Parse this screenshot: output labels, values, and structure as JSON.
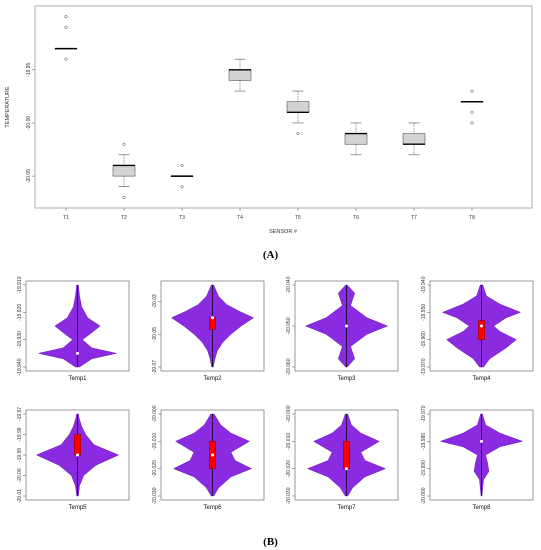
{
  "captions": {
    "a": "(A)",
    "b": "(B)"
  },
  "colors": {
    "box_fill": "#d3d3d3",
    "violin_fill": "#8a2be2",
    "violin_stroke": "#6a1bb5",
    "iqr_box": "#ff0000",
    "median_dot": "#ffffff"
  },
  "chart_data": [
    {
      "type": "box",
      "xlabel": "SENSOR #",
      "ylabel": "TEMPERATURE",
      "ylim": [
        -20.08,
        -19.89
      ],
      "yticks": [
        "-19.95",
        "-20.00",
        "-20.05"
      ],
      "yticks_values": [
        -19.95,
        -20.0,
        -20.05
      ],
      "categories": [
        "T1",
        "T2",
        "T3",
        "T4",
        "T5",
        "T6",
        "T7",
        "T8"
      ],
      "boxes": [
        {
          "q1": -19.93,
          "median": -19.93,
          "q3": -19.93,
          "whislo": -19.93,
          "whishi": -19.93,
          "outliers": [
            -19.9,
            -19.91,
            -19.94
          ]
        },
        {
          "q1": -20.05,
          "median": -20.04,
          "q3": -20.04,
          "whislo": -20.06,
          "whishi": -20.03,
          "outliers": [
            -20.02,
            -20.07
          ]
        },
        {
          "q1": -20.05,
          "median": -20.05,
          "q3": -20.05,
          "whislo": -20.05,
          "whishi": -20.05,
          "outliers": [
            -20.04,
            -20.06
          ]
        },
        {
          "q1": -19.96,
          "median": -19.95,
          "q3": -19.95,
          "whislo": -19.97,
          "whishi": -19.94,
          "outliers": []
        },
        {
          "q1": -19.99,
          "median": -19.99,
          "q3": -19.98,
          "whislo": -20.0,
          "whishi": -19.97,
          "outliers": [
            -20.01
          ]
        },
        {
          "q1": -20.02,
          "median": -20.01,
          "q3": -20.01,
          "whislo": -20.03,
          "whishi": -20.0,
          "outliers": []
        },
        {
          "q1": -20.02,
          "median": -20.02,
          "q3": -20.01,
          "whislo": -20.03,
          "whishi": -20.0,
          "outliers": []
        },
        {
          "q1": -19.98,
          "median": -19.98,
          "q3": -19.98,
          "whislo": -19.98,
          "whishi": -19.98,
          "outliers": [
            -19.97,
            -19.99,
            -20.0
          ]
        }
      ]
    },
    {
      "type": "violin",
      "panels": [
        {
          "label": "Temp1",
          "ylim": [
            -19.94,
            -19.91
          ],
          "yticks": [
            "-19.910",
            "-19.920",
            "-19.930",
            "-19.940"
          ],
          "yticks_values": [
            -19.91,
            -19.92,
            -19.93,
            -19.94
          ],
          "median": -19.935,
          "q1": -19.935,
          "q3": -19.935,
          "density": [
            [
              -19.94,
              0.05
            ],
            [
              -19.937,
              0.35
            ],
            [
              -19.935,
              0.95
            ],
            [
              -19.933,
              0.35
            ],
            [
              -19.93,
              0.12
            ],
            [
              -19.928,
              0.3
            ],
            [
              -19.925,
              0.55
            ],
            [
              -19.922,
              0.25
            ],
            [
              -19.918,
              0.1
            ],
            [
              -19.914,
              0.05
            ],
            [
              -19.91,
              0.02
            ]
          ]
        },
        {
          "label": "Temp2",
          "ylim": [
            -20.07,
            -20.02
          ],
          "yticks": [
            "-20.03",
            "-20.05",
            "-20.07"
          ],
          "yticks_values": [
            -20.03,
            -20.05,
            -20.07
          ],
          "median": -20.04,
          "q1": -20.047,
          "q3": -20.04,
          "density": [
            [
              -20.07,
              0.02
            ],
            [
              -20.065,
              0.06
            ],
            [
              -20.06,
              0.12
            ],
            [
              -20.055,
              0.25
            ],
            [
              -20.05,
              0.45
            ],
            [
              -20.045,
              0.7
            ],
            [
              -20.04,
              1.0
            ],
            [
              -20.036,
              0.65
            ],
            [
              -20.032,
              0.35
            ],
            [
              -20.027,
              0.15
            ],
            [
              -20.023,
              0.08
            ],
            [
              -20.02,
              0.03
            ]
          ]
        },
        {
          "label": "Temp3",
          "ylim": [
            -20.06,
            -20.04
          ],
          "yticks": [
            "-20.040",
            "-20.050",
            "-20.060"
          ],
          "yticks_values": [
            -20.04,
            -20.05,
            -20.06
          ],
          "median": -20.05,
          "q1": -20.05,
          "q3": -20.05,
          "density": [
            [
              -20.06,
              0.02
            ],
            [
              -20.058,
              0.2
            ],
            [
              -20.055,
              0.1
            ],
            [
              -20.052,
              0.5
            ],
            [
              -20.05,
              1.0
            ],
            [
              -20.048,
              0.5
            ],
            [
              -20.045,
              0.1
            ],
            [
              -20.042,
              0.2
            ],
            [
              -20.04,
              0.02
            ]
          ]
        },
        {
          "label": "Temp4",
          "ylim": [
            -19.97,
            -19.94
          ],
          "yticks": [
            "-19.940",
            "-19.950",
            "-19.960",
            "-19.970"
          ],
          "yticks_values": [
            -19.94,
            -19.95,
            -19.96,
            -19.97
          ],
          "median": -19.955,
          "q1": -19.96,
          "q3": -19.953,
          "density": [
            [
              -19.97,
              0.05
            ],
            [
              -19.967,
              0.2
            ],
            [
              -19.963,
              0.6
            ],
            [
              -19.96,
              0.85
            ],
            [
              -19.957,
              0.45
            ],
            [
              -19.955,
              0.3
            ],
            [
              -19.952,
              0.6
            ],
            [
              -19.95,
              0.95
            ],
            [
              -19.947,
              0.45
            ],
            [
              -19.944,
              0.12
            ],
            [
              -19.94,
              0.03
            ]
          ]
        },
        {
          "label": "Temp5",
          "ylim": [
            -20.01,
            -19.97
          ],
          "yticks": [
            "-19.97",
            "-19.98",
            "-19.99",
            "-20.00",
            "-20.01"
          ],
          "yticks_values": [
            -19.97,
            -19.98,
            -19.99,
            -20.0,
            -20.01
          ],
          "median": -19.99,
          "q1": -19.99,
          "q3": -19.98,
          "density": [
            [
              -20.01,
              0.02
            ],
            [
              -20.005,
              0.05
            ],
            [
              -20.0,
              0.15
            ],
            [
              -19.995,
              0.45
            ],
            [
              -19.99,
              1.0
            ],
            [
              -19.985,
              0.4
            ],
            [
              -19.98,
              0.2
            ],
            [
              -19.976,
              0.1
            ],
            [
              -19.972,
              0.04
            ],
            [
              -19.97,
              0.02
            ]
          ]
        },
        {
          "label": "Temp6",
          "ylim": [
            -20.03,
            -20.0
          ],
          "yticks": [
            "-20.000",
            "-20.010",
            "-20.020",
            "-20.030"
          ],
          "yticks_values": [
            -20.0,
            -20.01,
            -20.02,
            -20.03
          ],
          "median": -20.015,
          "q1": -20.02,
          "q3": -20.01,
          "density": [
            [
              -20.03,
              0.03
            ],
            [
              -20.027,
              0.15
            ],
            [
              -20.023,
              0.45
            ],
            [
              -20.02,
              0.95
            ],
            [
              -20.017,
              0.55
            ],
            [
              -20.014,
              0.45
            ],
            [
              -20.01,
              0.9
            ],
            [
              -20.007,
              0.45
            ],
            [
              -20.004,
              0.2
            ],
            [
              -20.0,
              0.04
            ]
          ]
        },
        {
          "label": "Temp7",
          "ylim": [
            -20.03,
            -20.0
          ],
          "yticks": [
            "-20.000",
            "-20.010",
            "-20.020",
            "-20.030"
          ],
          "yticks_values": [
            -20.0,
            -20.01,
            -20.02,
            -20.03
          ],
          "median": -20.02,
          "q1": -20.02,
          "q3": -20.01,
          "density": [
            [
              -20.03,
              0.03
            ],
            [
              -20.027,
              0.15
            ],
            [
              -20.023,
              0.45
            ],
            [
              -20.02,
              0.95
            ],
            [
              -20.017,
              0.45
            ],
            [
              -20.014,
              0.35
            ],
            [
              -20.01,
              0.8
            ],
            [
              -20.007,
              0.35
            ],
            [
              -20.004,
              0.12
            ],
            [
              -20.0,
              0.03
            ]
          ]
        },
        {
          "label": "Temp8",
          "ylim": [
            -20.0,
            -19.97
          ],
          "yticks": [
            "-19.970",
            "-19.980",
            "-19.990",
            "-20.000"
          ],
          "yticks_values": [
            -19.97,
            -19.98,
            -19.99,
            -20.0
          ],
          "median": -19.98,
          "q1": -19.98,
          "q3": -19.98,
          "density": [
            [
              -20.0,
              0.01
            ],
            [
              -19.997,
              0.03
            ],
            [
              -19.994,
              0.05
            ],
            [
              -19.991,
              0.18
            ],
            [
              -19.988,
              0.15
            ],
            [
              -19.985,
              0.1
            ],
            [
              -19.982,
              0.45
            ],
            [
              -19.98,
              1.0
            ],
            [
              -19.977,
              0.45
            ],
            [
              -19.974,
              0.1
            ],
            [
              -19.97,
              0.02
            ]
          ]
        }
      ]
    }
  ]
}
